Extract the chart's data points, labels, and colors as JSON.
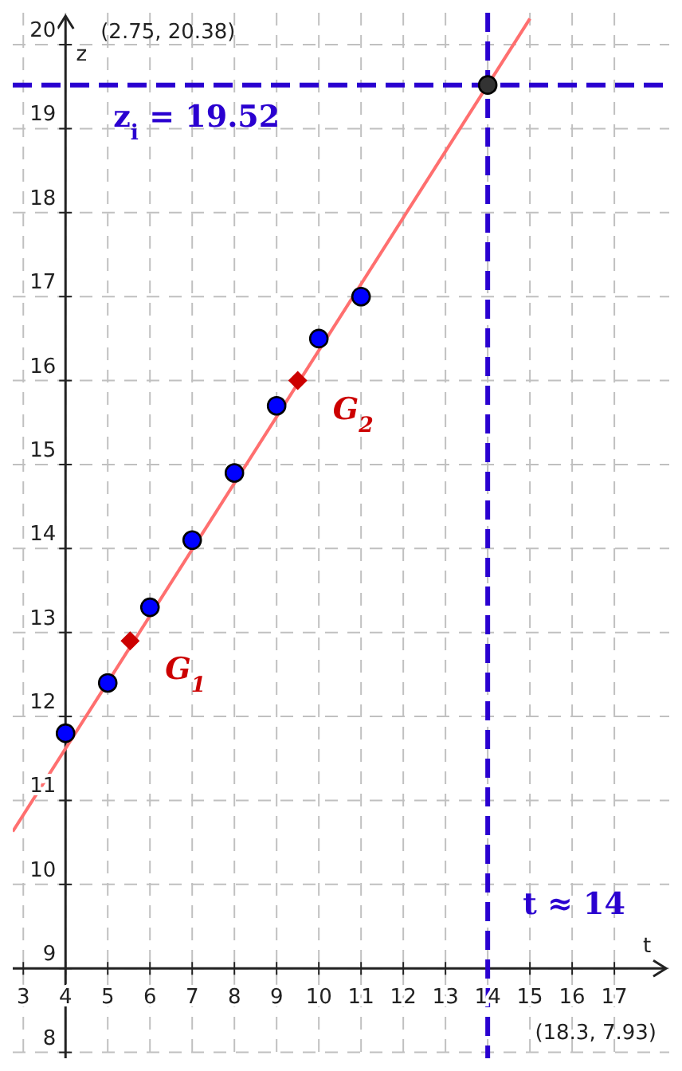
{
  "chart_data": {
    "type": "scatter",
    "xlabel": "t",
    "ylabel": "z",
    "xlim": [
      2.75,
      18.3
    ],
    "ylim": [
      7.93,
      20.38
    ],
    "xticks": [
      3,
      4,
      5,
      6,
      7,
      8,
      9,
      10,
      11,
      12,
      13,
      14,
      15,
      16,
      17
    ],
    "yticks": [
      8,
      9,
      10,
      11,
      12,
      13,
      14,
      15,
      16,
      17,
      18,
      19,
      20
    ],
    "grid": true,
    "marker": "circle",
    "series": [
      {
        "type": "line",
        "marker": "none",
        "color": "#ff6f6f",
        "x": [
          2.75,
          15.0
        ],
        "values": [
          10.63,
          20.31
        ]
      },
      {
        "color": "#0000ff",
        "x": [
          4,
          5,
          6,
          7,
          8,
          9,
          10,
          11
        ],
        "values": [
          11.8,
          12.4,
          13.3,
          14.1,
          14.9,
          15.7,
          16.5,
          17.0
        ]
      },
      {
        "name": "G$_{1}$",
        "color": "#cc0000",
        "marker": "diamond",
        "x": [
          5.53
        ],
        "values": [
          12.9
        ]
      },
      {
        "name": "G$_{2}$",
        "color": "#cc0000",
        "marker": "diamond",
        "x": [
          9.5
        ],
        "values": [
          16.0
        ]
      },
      {
        "color": "#333333",
        "x": [
          14
        ],
        "values": [
          19.52
        ]
      }
    ],
    "ref_lines": [
      {
        "axis": "y",
        "value": 19.52,
        "label": "z$_{i}$ = 19.52",
        "color": "#2a00d0",
        "line_style": "dashed"
      },
      {
        "axis": "x",
        "value": 14,
        "label": "t ≈ 14",
        "color": "#2a00d0",
        "line_style": "dashed"
      }
    ],
    "annotations": [
      "(2.75, 20.38)",
      "(18.3, 7.93)"
    ]
  }
}
